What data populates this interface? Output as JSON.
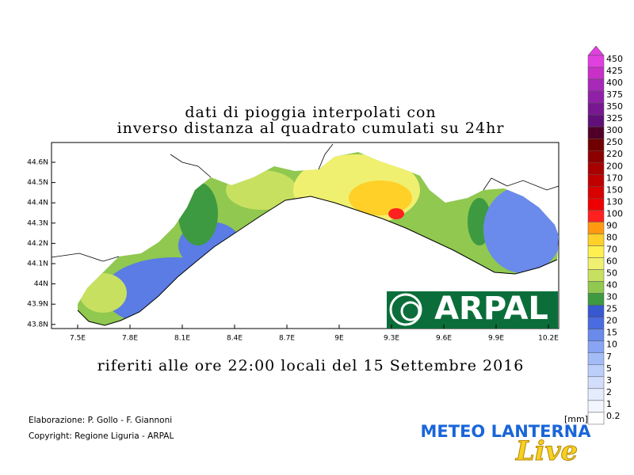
{
  "title": [
    "dati di pioggia interpolati con",
    "inverso distanza al quadrato cumulati su 24hr"
  ],
  "subtitle": "riferiti alle ore 22:00 locali del 15 Settembre 2016",
  "map": {
    "lon_ticks": [
      "7.5E",
      "7.8E",
      "8.1E",
      "8.4E",
      "8.7E",
      "9E",
      "9.3E",
      "9.6E",
      "9.9E",
      "10.2E"
    ],
    "lat_ticks": [
      "44.6N",
      "44.5N",
      "44.4N",
      "44.3N",
      "44.2N",
      "44.1N",
      "44N",
      "43.9N",
      "43.8N"
    ]
  },
  "logo": "ARPAL",
  "legend": {
    "unit": "[mm]",
    "levels": [
      {
        "label": "450",
        "color": "#e040e0"
      },
      {
        "label": "425",
        "color": "#c830c8"
      },
      {
        "label": "400",
        "color": "#a828b8"
      },
      {
        "label": "375",
        "color": "#9020a8"
      },
      {
        "label": "350",
        "color": "#781890"
      },
      {
        "label": "325",
        "color": "#601078"
      },
      {
        "label": "300",
        "color": "#500028"
      },
      {
        "label": "250",
        "color": "#700000"
      },
      {
        "label": "220",
        "color": "#8c0000"
      },
      {
        "label": "200",
        "color": "#a80000"
      },
      {
        "label": "170",
        "color": "#c00000"
      },
      {
        "label": "150",
        "color": "#d80000"
      },
      {
        "label": "130",
        "color": "#ee0000"
      },
      {
        "label": "100",
        "color": "#ff2020"
      },
      {
        "label": "90",
        "color": "#ff9a10"
      },
      {
        "label": "80",
        "color": "#ffd028"
      },
      {
        "label": "70",
        "color": "#fff050"
      },
      {
        "label": "60",
        "color": "#f0f070"
      },
      {
        "label": "50",
        "color": "#c8e060"
      },
      {
        "label": "40",
        "color": "#90c850"
      },
      {
        "label": "30",
        "color": "#3e9a40"
      },
      {
        "label": "25",
        "color": "#3858d0"
      },
      {
        "label": "20",
        "color": "#4a6ce0"
      },
      {
        "label": "15",
        "color": "#6a8aec"
      },
      {
        "label": "10",
        "color": "#88a4f2"
      },
      {
        "label": "7",
        "color": "#a4bcf6"
      },
      {
        "label": "5",
        "color": "#bccefa"
      },
      {
        "label": "3",
        "color": "#d2defc"
      },
      {
        "label": "2",
        "color": "#e4ecfe"
      },
      {
        "label": "1",
        "color": "#f2f6ff"
      },
      {
        "label": "0.2",
        "color": "#ffffff"
      }
    ]
  },
  "credits": [
    "Elaborazione: P. Gollo - F. Giannoni",
    "Copyright: Regione Liguria - ARPAL"
  ],
  "brand": {
    "name": "METEO LANTERNA",
    "tag": "Live"
  }
}
